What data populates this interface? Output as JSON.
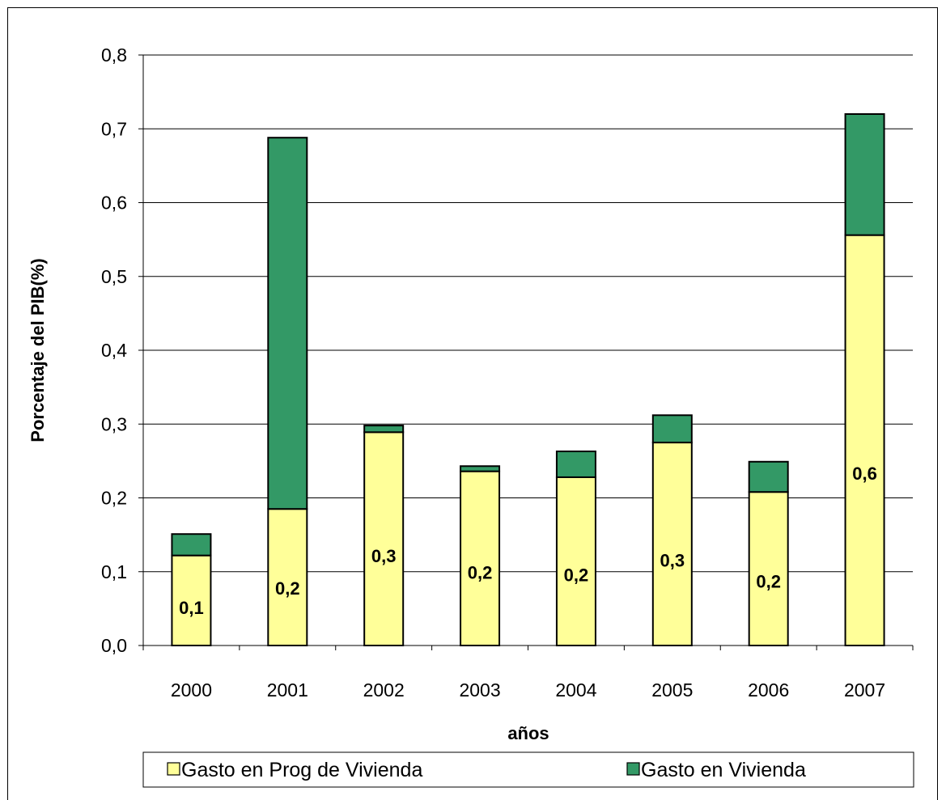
{
  "chart_data": {
    "type": "bar",
    "stacked": true,
    "categories": [
      "2000",
      "2001",
      "2002",
      "2003",
      "2004",
      "2005",
      "2006",
      "2007"
    ],
    "series": [
      {
        "name": "Gasto en Prog de Vivienda",
        "color": "#ffff99",
        "values": [
          0.122,
          0.185,
          0.289,
          0.236,
          0.228,
          0.275,
          0.208,
          0.556
        ]
      },
      {
        "name": "Gasto en Vivienda",
        "color": "#339966",
        "values": [
          0.029,
          0.503,
          0.009,
          0.007,
          0.035,
          0.037,
          0.041,
          0.164
        ]
      }
    ],
    "data_labels": [
      "0,1",
      "0,2",
      "0,3",
      "0,2",
      "0,2",
      "0,3",
      "0,2",
      "0,6"
    ],
    "xlabel": "años",
    "ylabel": "Porcentaje del PIB(%)",
    "ylim": [
      0,
      0.8
    ],
    "yticks": [
      "0,0",
      "0,1",
      "0,2",
      "0,3",
      "0,4",
      "0,5",
      "0,6",
      "0,7",
      "0,8"
    ],
    "grid": true,
    "legend_position": "bottom"
  }
}
